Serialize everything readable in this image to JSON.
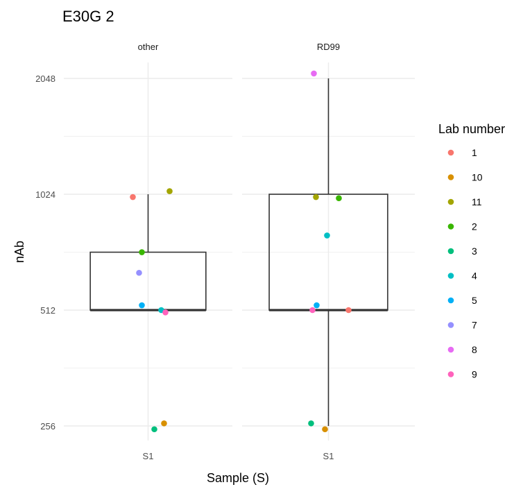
{
  "chart_data": {
    "type": "boxplot",
    "title": "E30G 2",
    "xlabel": "Sample (S)",
    "ylabel": "nAb",
    "y_scale": "log2",
    "y_ticks": [
      256,
      512,
      1024,
      2048
    ],
    "grid": true,
    "legend": {
      "title": "Lab number",
      "position": "right",
      "entries": [
        {
          "label": "1",
          "color": "#F8766D"
        },
        {
          "label": "10",
          "color": "#D89000"
        },
        {
          "label": "11",
          "color": "#A3A500"
        },
        {
          "label": "2",
          "color": "#39B600"
        },
        {
          "label": "3",
          "color": "#00BF7D"
        },
        {
          "label": "4",
          "color": "#00BFC4"
        },
        {
          "label": "5",
          "color": "#00B0F6"
        },
        {
          "label": "7",
          "color": "#9590FF"
        },
        {
          "label": "8",
          "color": "#E76BF3"
        },
        {
          "label": "9",
          "color": "#FF62BC"
        }
      ]
    },
    "panels": [
      {
        "name": "other",
        "category": "S1",
        "box": {
          "lower_whisker": 512,
          "q1": 512,
          "median": 512,
          "q3": 724,
          "upper_whisker": 1024
        },
        "points": [
          {
            "lab": "1",
            "value": 1007
          },
          {
            "lab": "11",
            "value": 1043
          },
          {
            "lab": "2",
            "value": 724
          },
          {
            "lab": "7",
            "value": 640
          },
          {
            "lab": "5",
            "value": 527
          },
          {
            "lab": "4",
            "value": 512
          },
          {
            "lab": "9",
            "value": 505
          },
          {
            "lab": "10",
            "value": 260
          },
          {
            "lab": "3",
            "value": 251
          }
        ]
      },
      {
        "name": "RD99",
        "category": "S1",
        "box": {
          "lower_whisker": 256,
          "q1": 512,
          "median": 512,
          "q3": 1024,
          "upper_whisker": 2048
        },
        "points": [
          {
            "lab": "8",
            "value": 2109
          },
          {
            "lab": "11",
            "value": 1007
          },
          {
            "lab": "2",
            "value": 1000
          },
          {
            "lab": "4",
            "value": 800
          },
          {
            "lab": "5",
            "value": 527
          },
          {
            "lab": "9",
            "value": 512
          },
          {
            "lab": "1",
            "value": 512
          },
          {
            "lab": "3",
            "value": 260
          },
          {
            "lab": "10",
            "value": 251
          }
        ]
      }
    ]
  }
}
